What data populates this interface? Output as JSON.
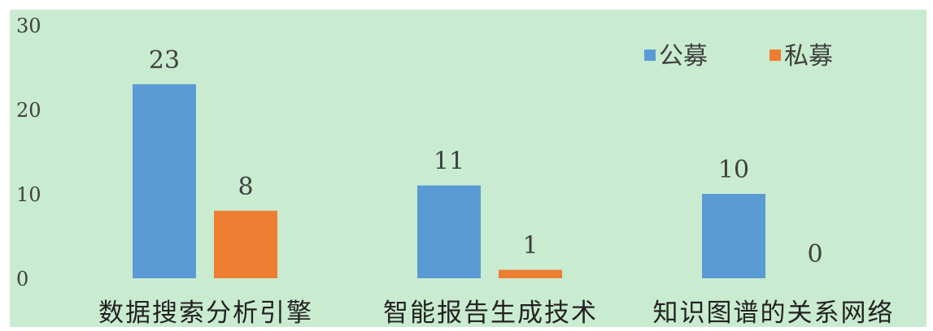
{
  "chart_data": {
    "type": "bar",
    "categories": [
      "数据搜索分析引擎",
      "智能报告生成技术",
      "知识图谱的关系网络"
    ],
    "series": [
      {
        "name": "公募",
        "values": [
          23,
          11,
          10
        ],
        "color": "#5B9BD5"
      },
      {
        "name": "私募",
        "values": [
          8,
          1,
          0
        ],
        "color": "#ED7D31"
      }
    ],
    "ylim": [
      0,
      30
    ],
    "yticks": [
      0,
      10,
      20,
      30
    ],
    "legend_position": "top-right",
    "grid": false,
    "background_color": "#C9EBCF"
  }
}
